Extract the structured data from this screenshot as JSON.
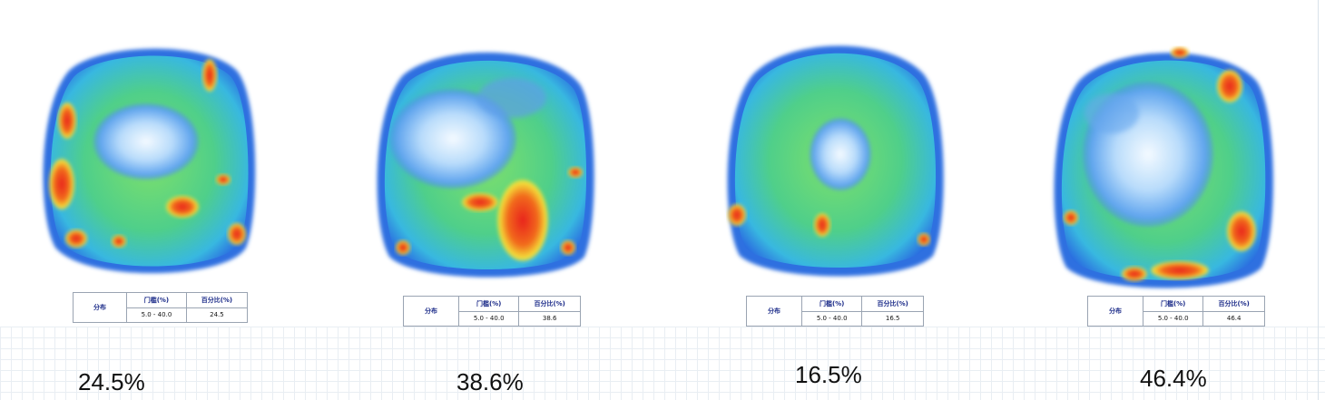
{
  "panels": [
    {
      "table": {
        "dist_label": "分布",
        "threshold_header": "门槛(%)",
        "percent_header": "百分比(%)",
        "threshold_value": "5.0 - 40.0",
        "percent_value": "24.5"
      },
      "percent_caption": "24.5%"
    },
    {
      "table": {
        "dist_label": "分布",
        "threshold_header": "门槛(%)",
        "percent_header": "百分比(%)",
        "threshold_value": "5.0 - 40.0",
        "percent_value": "38.6"
      },
      "percent_caption": "38.6%"
    },
    {
      "table": {
        "dist_label": "分布",
        "threshold_header": "门槛(%)",
        "percent_header": "百分比(%)",
        "threshold_value": "5.0 - 40.0",
        "percent_value": "16.5"
      },
      "percent_caption": "16.5%"
    },
    {
      "table": {
        "dist_label": "分布",
        "threshold_header": "门槛(%)",
        "percent_header": "百分比(%)",
        "threshold_value": "5.0 - 40.0",
        "percent_value": "46.4"
      },
      "percent_caption": "46.4%"
    }
  ],
  "colors": {
    "low_air": "#e8f4ff",
    "blue": "#2f7fe0",
    "cyan": "#3cc8e8",
    "green": "#57d46a",
    "yellow": "#f4e23a",
    "red": "#e8221a"
  }
}
